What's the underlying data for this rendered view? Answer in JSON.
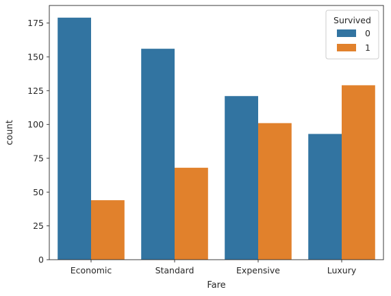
{
  "chart_data": {
    "type": "bar",
    "xlabel": "Fare",
    "ylabel": "count",
    "categories": [
      "Economic",
      "Standard",
      "Expensive",
      "Luxury"
    ],
    "series": [
      {
        "name": "0",
        "color": "#3274a1",
        "values": [
          179,
          156,
          121,
          93
        ]
      },
      {
        "name": "1",
        "color": "#e1812c",
        "values": [
          44,
          68,
          101,
          129
        ]
      }
    ],
    "ylim": [
      0,
      188
    ],
    "yticks": [
      0,
      25,
      50,
      75,
      100,
      125,
      150,
      175
    ],
    "grid": false,
    "legend": {
      "title": "Survived",
      "placement": "top-right"
    }
  }
}
